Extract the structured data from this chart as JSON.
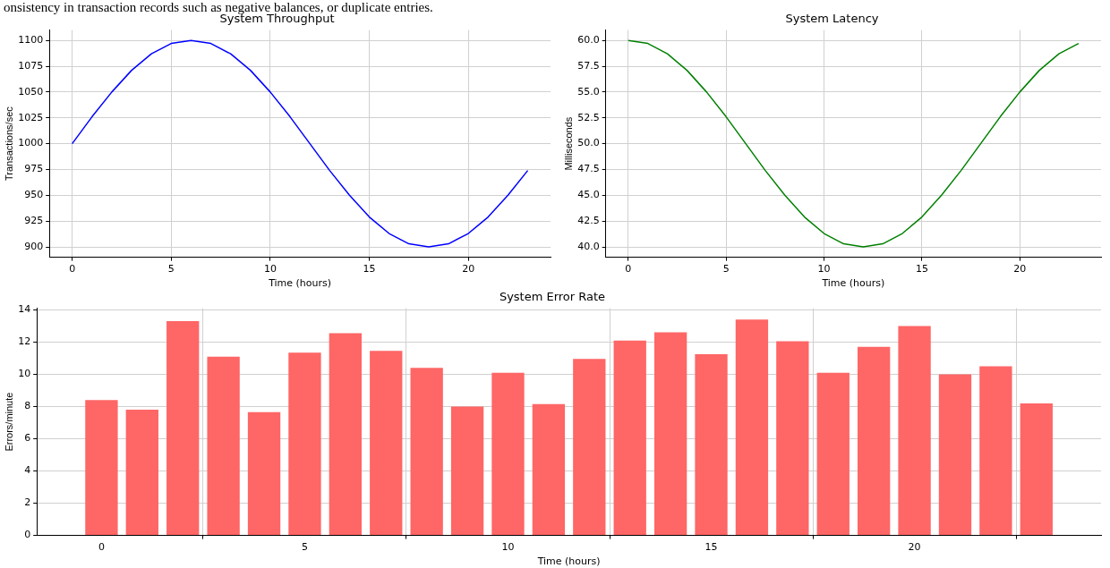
{
  "chart_data": [
    {
      "type": "line",
      "title": "System Throughput",
      "xlabel": "Time (hours)",
      "ylabel": "Transactions/sec",
      "annotations": [
        "onsistency in transaction records such as negative balances, or duplicate entries."
      ],
      "x": [
        0,
        1,
        2,
        3,
        4,
        5,
        6,
        7,
        8,
        9,
        10,
        11,
        12,
        13,
        14,
        15,
        16,
        17,
        18,
        19,
        20,
        21,
        22,
        23
      ],
      "series": [
        {
          "color": "#0000ff",
          "values": [
            1000,
            1026,
            1050,
            1071,
            1087,
            1097,
            1100,
            1097,
            1087,
            1071,
            1050,
            1026,
            1000,
            974,
            950,
            929,
            913,
            903,
            900,
            903,
            913,
            929,
            950,
            974
          ]
        }
      ],
      "xlim": [
        -1.15,
        24.15
      ],
      "xticks": [
        0,
        5,
        10,
        15,
        20
      ],
      "ylim": [
        890,
        1110
      ],
      "yticks": [
        900,
        925,
        950,
        975,
        1000,
        1025,
        1050,
        1075,
        1100
      ],
      "grid": true,
      "legend": false
    },
    {
      "type": "line",
      "title": "System Latency",
      "xlabel": "Time (hours)",
      "ylabel": "Milliseconds",
      "x": [
        0,
        1,
        2,
        3,
        4,
        5,
        6,
        7,
        8,
        9,
        10,
        11,
        12,
        13,
        14,
        15,
        16,
        17,
        18,
        19,
        20,
        21,
        22,
        23
      ],
      "series": [
        {
          "color": "#008000",
          "values": [
            60,
            59.7,
            58.7,
            57.1,
            55,
            52.6,
            50,
            47.4,
            45,
            42.9,
            41.3,
            40.3,
            40,
            40.3,
            41.3,
            42.9,
            45,
            47.4,
            50,
            52.6,
            55,
            57.1,
            58.7,
            59.7
          ]
        }
      ],
      "xlim": [
        -1.15,
        24.15
      ],
      "xticks": [
        0,
        5,
        10,
        15,
        20
      ],
      "ylim": [
        39,
        61
      ],
      "yticks": [
        {
          "value": 40,
          "label": "40.0"
        },
        {
          "value": 42.5,
          "label": "42.5"
        },
        {
          "value": 45,
          "label": "45.0"
        },
        {
          "value": 47.5,
          "label": "47.5"
        },
        {
          "value": 50,
          "label": "50.0"
        },
        {
          "value": 52.5,
          "label": "52.5"
        },
        {
          "value": 55,
          "label": "55.0"
        },
        {
          "value": 57.5,
          "label": "57.5"
        },
        {
          "value": 60,
          "label": "60.0"
        }
      ],
      "grid": true,
      "legend": false
    },
    {
      "type": "bar",
      "title": "System Error Rate",
      "xlabel": "Time (hours)",
      "ylabel": "Errors/minute",
      "x": [
        0,
        1,
        2,
        3,
        4,
        5,
        6,
        7,
        8,
        9,
        10,
        11,
        12,
        13,
        14,
        15,
        16,
        17,
        18,
        19,
        20,
        21,
        22,
        23
      ],
      "series": [
        {
          "color": "#ff6666",
          "values": [
            8.4,
            7.8,
            13.3,
            11.1,
            7.65,
            11.35,
            12.55,
            11.45,
            10.4,
            8.0,
            10.1,
            8.15,
            10.95,
            12.1,
            12.6,
            11.25,
            13.4,
            12.05,
            10.1,
            11.7,
            13.0,
            10.0,
            10.5,
            8.2
          ]
        }
      ],
      "xlim": [
        -1.59,
        24.59
      ],
      "xticks": [
        0,
        5,
        10,
        15,
        20
      ],
      "ylim": [
        0,
        14.1
      ],
      "yticks": [
        0,
        2,
        4,
        6,
        8,
        10,
        12,
        14
      ],
      "grid": true,
      "legend": false
    }
  ]
}
